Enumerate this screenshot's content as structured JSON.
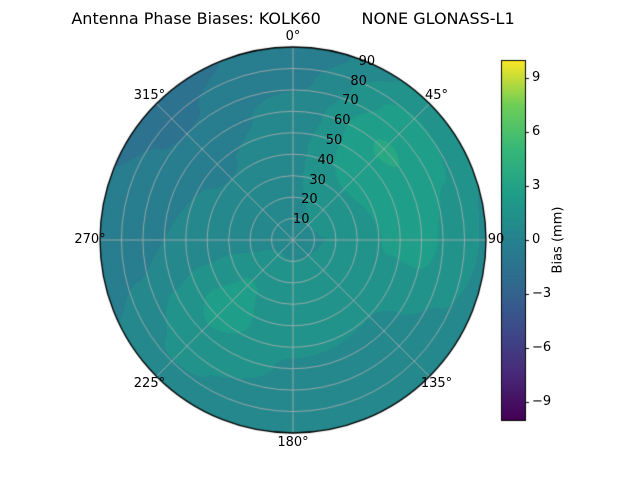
{
  "chart_data": {
    "type": "heatmap",
    "projection": "polar",
    "title": "Antenna Phase Biases: KOLK60        NONE GLONASS-L1",
    "angle_ticks_deg": [
      0,
      45,
      90,
      135,
      180,
      225,
      270,
      315
    ],
    "angle_tick_labels": [
      "0°",
      "45°",
      "90",
      "135°",
      "180°",
      "225°",
      "270°",
      "315°"
    ],
    "radial_ticks": [
      10,
      20,
      30,
      40,
      50,
      60,
      70,
      80,
      90
    ],
    "radial_max": 90,
    "radial_label_azimuth_deg": 22.5,
    "grid": true,
    "level_step_mm": 1,
    "azimuth_deg": [
      0,
      45,
      90,
      135,
      180,
      225,
      270,
      315,
      360
    ],
    "zenith_deg": [
      0,
      15,
      30,
      45,
      60,
      75,
      90
    ],
    "bias_mm": [
      [
        0.6,
        0.8,
        0.9,
        0.8,
        0.4,
        -0.2,
        -0.7
      ],
      [
        0.6,
        1.2,
        1.9,
        2.7,
        3.1,
        2.4,
        1.3
      ],
      [
        0.6,
        1.0,
        1.5,
        2.1,
        2.3,
        1.7,
        0.9
      ],
      [
        0.6,
        1.1,
        1.3,
        1.1,
        0.8,
        0.5,
        0.3
      ],
      [
        0.6,
        1.2,
        1.5,
        1.3,
        0.9,
        0.6,
        0.3
      ],
      [
        0.6,
        1.3,
        2.1,
        2.4,
        1.9,
        1.1,
        0.5
      ],
      [
        0.6,
        0.8,
        0.7,
        0.4,
        0.0,
        -0.4,
        -0.7
      ],
      [
        0.6,
        0.6,
        0.4,
        -0.1,
        -0.7,
        -1.1,
        -1.3
      ],
      [
        0.6,
        0.8,
        0.9,
        0.8,
        0.4,
        -0.2,
        -0.7
      ]
    ],
    "colorbar": {
      "label": "Bias (mm)",
      "vmin": -10,
      "vmax": 10,
      "ticks": [
        9,
        6,
        3,
        0,
        -3,
        -6,
        -9
      ],
      "tick_labels": [
        "9",
        "6",
        "3",
        "0",
        "−3",
        "−6",
        "−9"
      ],
      "colormap": "viridis",
      "colormap_stops": [
        "#440154",
        "#482878",
        "#3e4a89",
        "#31688e",
        "#26828e",
        "#1f9e89",
        "#35b779",
        "#6ece58",
        "#fde725"
      ]
    }
  },
  "colors": {
    "grid_line": "#b0b0b0",
    "axis_edge": "#000000",
    "text": "#000000",
    "background": "#ffffff"
  }
}
